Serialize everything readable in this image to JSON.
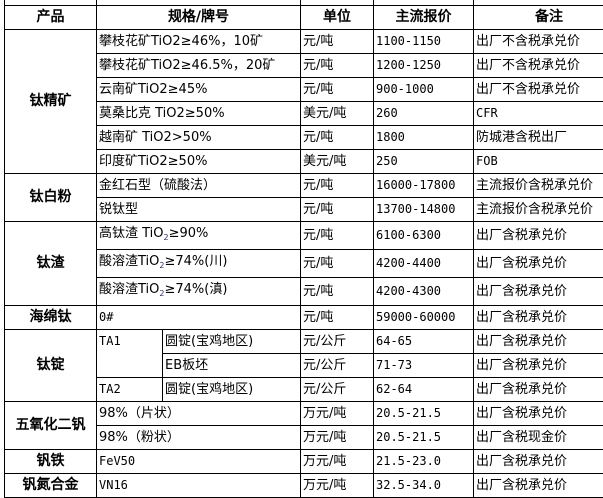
{
  "headers": {
    "product": "产品",
    "spec": "规格/牌号",
    "unit": "单位",
    "price": "主流报价",
    "note": "备注"
  },
  "rows": {
    "r1": {
      "product": "钛精矿",
      "spec": "攀枝花矿TiO2≥46%，10矿",
      "unit": "元/吨",
      "price": "1100-1150",
      "note": "出厂不含税承兑价"
    },
    "r2": {
      "spec": "攀枝花矿TiO2≥46.5%，20矿",
      "unit": "元/吨",
      "price": "1200-1250",
      "note": "出厂不含税承兑价"
    },
    "r3": {
      "spec": "云南矿TiO2≥45%",
      "unit": "元/吨",
      "price": "900-1000",
      "note": "出厂不含税承兑价"
    },
    "r4": {
      "spec": "莫桑比克 TiO2≥50%",
      "unit": "美元/吨",
      "price": "260",
      "note": "CFR"
    },
    "r5": {
      "spec": "越南矿 TiO2>50%",
      "unit": "元/吨",
      "price": "1800",
      "note": "防城港含税出厂"
    },
    "r6": {
      "spec": "印度矿TiO2≥50%",
      "unit": "美元/吨",
      "price": "250",
      "note": "FOB"
    },
    "r7": {
      "product": "钛白粉",
      "spec": "金红石型（硫酸法）",
      "unit": "元/吨",
      "price": "16000-17800",
      "note": "主流报价含税承兑价"
    },
    "r8": {
      "spec": "锐钛型",
      "unit": "元/吨",
      "price": "13700-14800",
      "note": "主流报价含税承兑价"
    },
    "r9": {
      "product": "钛渣",
      "spec_a": "高钛渣 TiO",
      "spec_sub": "2",
      "spec_b": "≥90%",
      "unit": "元/吨",
      "price": "6100-6300",
      "note": "出厂含税承兑价"
    },
    "r10": {
      "spec_a": "酸溶渣TiO",
      "spec_sub": "2",
      "spec_b": "≥74%(川)",
      "unit": "元/吨",
      "price": "4200-4400",
      "note": "出厂含税承兑价"
    },
    "r11": {
      "spec_a": "酸溶渣TiO",
      "spec_sub": "2",
      "spec_b": "≥74%(滇)",
      "unit": "元/吨",
      "price": "4200-4300",
      "note": "出厂含税承兑价"
    },
    "r12": {
      "product": "海绵钛",
      "spec": "0#",
      "unit": "元/吨",
      "price": "59000-60000",
      "note": "出厂含税承兑价"
    },
    "r13": {
      "product": "钛锭",
      "grade": "TA1",
      "form": "圆锭(宝鸡地区)",
      "unit": "元/公斤",
      "price": "64-65",
      "note": "出厂含税承兑价"
    },
    "r14": {
      "form": "EB板坯",
      "unit": "元/公斤",
      "price": "71-73",
      "note": "出厂含税承兑价"
    },
    "r15": {
      "grade": "TA2",
      "form": "圆锭(宝鸡地区)",
      "unit": "元/公斤",
      "price": "62-64",
      "note": "出厂含税承兑价"
    },
    "r16": {
      "product": "五氧化二钒",
      "spec": "98%（片状）",
      "unit": "万元/吨",
      "price": "20.5-21.5",
      "note": "出厂含税承兑价"
    },
    "r17": {
      "spec": "98%（粉状）",
      "unit": "万元/吨",
      "price": "20.5-21.5",
      "note": "出厂含税现金价"
    },
    "r18": {
      "product": "钒铁",
      "spec": "FeV50",
      "unit": "万元/吨",
      "price": "21.5-23.0",
      "note": "出厂含税承兑价"
    },
    "r19": {
      "product": "钒氮合金",
      "spec": "VN16",
      "unit": "万元/吨",
      "price": "32.5-34.0",
      "note": "出厂含税承兑价"
    }
  }
}
